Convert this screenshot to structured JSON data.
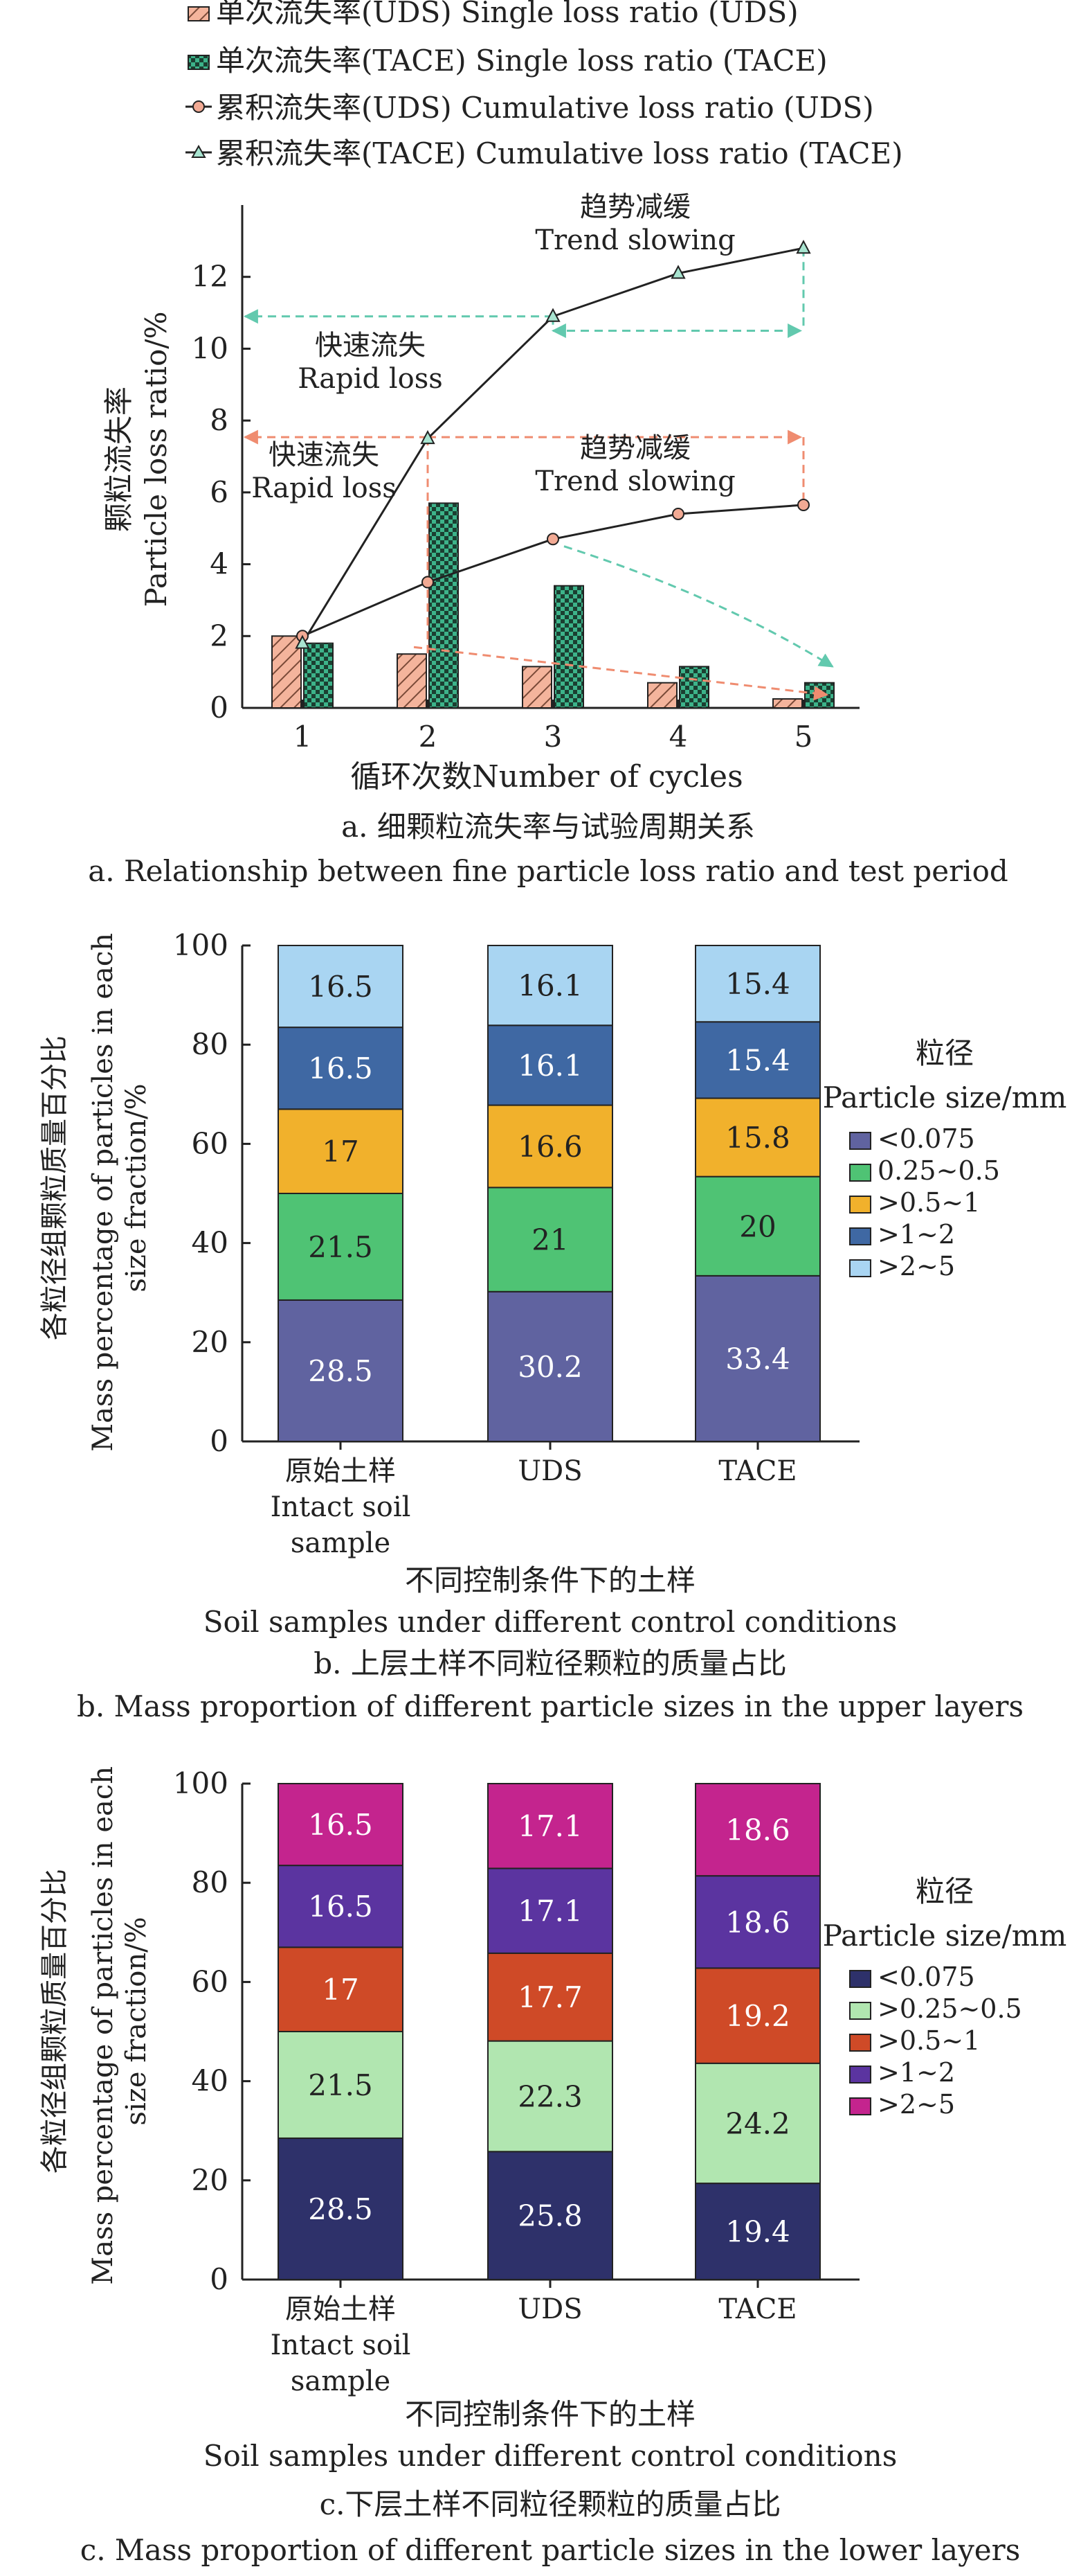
{
  "colors": {
    "uds_bar": "#f4b49c",
    "tace_bar": "#3db38a",
    "uds_line_marker": "#f2aa94",
    "tace_line_marker": "#a8e4d0",
    "uds_arrow": "#ef8c70",
    "tace_arrow": "#62c9ae",
    "line": "#222222"
  },
  "chart_data": [
    {
      "type": "bar",
      "caption_cn": "a. 细颗粒流失率与试验周期关系",
      "caption_en": "a. Relationship between fine particle loss ratio and test period",
      "xlabel": "循环次数Number of cycles",
      "ylabel_cn": "颗粒流失率",
      "ylabel_en": "Particle loss ratio/%",
      "categories": [
        "1",
        "2",
        "3",
        "4",
        "5"
      ],
      "ylim": [
        0,
        14
      ],
      "yticks": [
        "0",
        "2",
        "4",
        "6",
        "8",
        "10",
        "12"
      ],
      "legend": [
        "单次流失率(UDS) Single loss ratio (UDS)",
        "单次流失率(TACE) Single loss ratio (TACE)",
        "累积流失率(UDS) Cumulative loss ratio (UDS)",
        "累积流失率(TACE) Cumulative loss ratio (TACE)"
      ],
      "series": [
        {
          "name": "单次流失率(UDS) Single loss ratio (UDS)",
          "kind": "bar",
          "values": [
            2.0,
            1.5,
            1.15,
            0.7,
            0.25
          ]
        },
        {
          "name": "单次流失率(TACE) Single loss ratio (TACE)",
          "kind": "bar",
          "values": [
            1.8,
            5.7,
            3.4,
            1.15,
            0.7
          ]
        },
        {
          "name": "累积流失率(UDS) Cumulative loss ratio (UDS)",
          "kind": "line",
          "values": [
            2.0,
            3.5,
            4.7,
            5.4,
            5.65
          ]
        },
        {
          "name": "累积流失率(TACE) Cumulative loss ratio (TACE)",
          "kind": "line",
          "values": [
            1.8,
            7.5,
            10.9,
            12.1,
            12.8
          ]
        }
      ],
      "annotations": [
        {
          "cn": "趋势减缓",
          "en": "Trend slowing"
        },
        {
          "cn": "快速流失",
          "en": "Rapid loss"
        },
        {
          "cn": "快速流失",
          "en": "Rapid loss"
        },
        {
          "cn": "趋势减缓",
          "en": "Trend slowing"
        }
      ]
    },
    {
      "type": "bar",
      "stacked": true,
      "caption_cn": "b. 上层土样不同粒径颗粒的质量占比",
      "caption_en": "b. Mass proportion of different particle sizes in the upper layers",
      "xlabel_cn": "不同控制条件下的土样",
      "xlabel_en": "Soil samples under different control conditions",
      "ylabel_cn": "各粒径组颗粒质量百分比",
      "ylabel_en": "Mass percentage of particles in each size fraction/%",
      "ylim": [
        0,
        100
      ],
      "yticks": [
        "0",
        "20",
        "40",
        "60",
        "80",
        "100"
      ],
      "categories": [
        {
          "lines": [
            "原始土样",
            "Intact soil",
            "sample"
          ]
        },
        {
          "lines": [
            "UDS"
          ]
        },
        {
          "lines": [
            "TACE"
          ]
        }
      ],
      "legend_title_cn": "粒径",
      "legend_title_en": "Particle size/mm",
      "series": [
        {
          "name": "<0.075",
          "color": "#6063a0",
          "values": [
            28.5,
            30.2,
            33.4
          ]
        },
        {
          "name": "0.25~0.5",
          "color": "#4fc374",
          "values": [
            21.5,
            21,
            20
          ]
        },
        {
          "name": ">0.5~1",
          "color": "#f1b12c",
          "values": [
            17,
            16.6,
            15.8
          ]
        },
        {
          "name": ">1~2",
          "color": "#3f68a3",
          "values": [
            16.5,
            16.1,
            15.4
          ]
        },
        {
          "name": ">2~5",
          "color": "#a9d5f2",
          "values": [
            16.5,
            16.1,
            15.4
          ]
        }
      ]
    },
    {
      "type": "bar",
      "stacked": true,
      "caption_cn": "c.下层土样不同粒径颗粒的质量占比",
      "caption_en": "c. Mass proportion of different particle sizes in the lower layers",
      "xlabel_cn": "不同控制条件下的土样",
      "xlabel_en": "Soil samples under different control conditions",
      "ylabel_cn": "各粒径组颗粒质量百分比",
      "ylabel_en": "Mass percentage of particles in each size fraction/%",
      "ylim": [
        0,
        100
      ],
      "yticks": [
        "0",
        "20",
        "40",
        "60",
        "80",
        "100"
      ],
      "categories": [
        {
          "lines": [
            "原始土样",
            "Intact soil",
            "sample"
          ]
        },
        {
          "lines": [
            "UDS"
          ]
        },
        {
          "lines": [
            "TACE"
          ]
        }
      ],
      "legend_title_cn": "粒径",
      "legend_title_en": "Particle size/mm",
      "series": [
        {
          "name": "<0.075",
          "color": "#2e316a",
          "values": [
            28.5,
            25.8,
            19.4
          ]
        },
        {
          "name": ">0.25~0.5",
          "color": "#b1e6b0",
          "values": [
            21.5,
            22.3,
            24.2
          ]
        },
        {
          "name": ">0.5~1",
          "color": "#cf4a27",
          "values": [
            17,
            17.7,
            19.2
          ]
        },
        {
          "name": ">1~2",
          "color": "#5b34a0",
          "values": [
            16.5,
            17.1,
            18.6
          ]
        },
        {
          "name": ">2~5",
          "color": "#c4248e",
          "values": [
            16.5,
            17.1,
            18.6
          ]
        }
      ]
    }
  ]
}
